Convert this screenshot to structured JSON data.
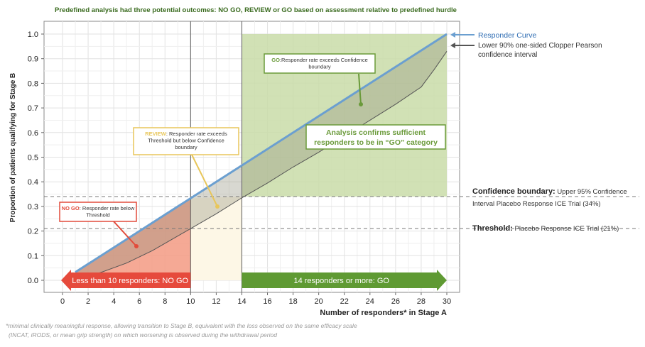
{
  "chart_data": {
    "type": "area",
    "title": "Predefined analysis had three potential outcomes: NO GO, REVIEW or GO based on assessment relative to predefined hurdle",
    "xlabel": "Number of responders* in Stage A",
    "ylabel": "Proportion of patients qualifying for Stage B",
    "xlim": [
      0,
      30
    ],
    "ylim": [
      0,
      1.0
    ],
    "x_ticks": [
      "0",
      "2",
      "4",
      "6",
      "8",
      "10",
      "12",
      "14",
      "16",
      "18",
      "20",
      "22",
      "24",
      "26",
      "28",
      "30"
    ],
    "y_ticks": [
      "0.0",
      "0.1",
      "0.2",
      "0.3",
      "0.4",
      "0.5",
      "0.6",
      "0.7",
      "0.8",
      "0.9",
      "1.0"
    ],
    "grid": true,
    "series": [
      {
        "name": "Responder Curve",
        "color": "#6b9fd0",
        "x": [
          1,
          30
        ],
        "y": [
          0.033,
          1.0
        ]
      },
      {
        "name": "Lower 90% one-sided Clopper Pearson confidence interval",
        "color": "#555555",
        "x": [
          1,
          3,
          5,
          7,
          9,
          10,
          12,
          14,
          16,
          18,
          20,
          22,
          24,
          26,
          28,
          29,
          30
        ],
        "y": [
          0.002,
          0.032,
          0.07,
          0.12,
          0.18,
          0.21,
          0.27,
          0.335,
          0.395,
          0.46,
          0.52,
          0.585,
          0.65,
          0.715,
          0.785,
          0.855,
          0.93
        ]
      }
    ],
    "reference_lines": [
      {
        "y": 0.34,
        "label_bold": "Confidence boundary:",
        "label": " Upper 95% Confidence Interval Placebo Response ICE Trial (34%)"
      },
      {
        "y": 0.21,
        "label_bold": "Threshold:",
        "label": " Placebo Response ICE Trial (21%)"
      }
    ],
    "vertical_lines": [
      10,
      14
    ],
    "zones": [
      {
        "name": "NO GO",
        "x": [
          0,
          10
        ],
        "y": [
          0,
          0.34
        ],
        "color": "#f4a08a"
      },
      {
        "name": "REVIEW",
        "x": [
          10,
          14
        ],
        "y": [
          0,
          0.34
        ],
        "color": "#fdf7e6"
      },
      {
        "name": "GO",
        "x": [
          14,
          30
        ],
        "y": [
          0.34,
          1.0
        ],
        "color": "#c9dca8"
      }
    ],
    "annotations": [
      {
        "id": "go",
        "prefix": "GO",
        "text": ":Responder rate exceeds Confidence boundary",
        "color": "#6a9a3a"
      },
      {
        "id": "review",
        "prefix": "REVIEW",
        "text": ": Responder rate exceeds Threshold but below Confidence boundary",
        "color": "#e8c65a"
      },
      {
        "id": "nogo",
        "prefix": "NO GO",
        "text": ": Responder rate below Threshold",
        "color": "#e24b3b"
      },
      {
        "id": "confirm",
        "text": "Analysis confirms sufficient responders to be in “GO” category",
        "color": "#6a9a3a"
      }
    ],
    "arrows": [
      {
        "text": "Less than 10 responders: NO GO",
        "x": [
          0,
          10
        ],
        "color": "#e64a3c"
      },
      {
        "text": "14 responders or more: GO",
        "x": [
          14,
          30
        ],
        "color": "#5f9a33"
      }
    ],
    "legend": {
      "placement": "right",
      "responder": "Responder Curve",
      "ci": "Lower 90% one-sided Clopper Pearson confidence interval"
    },
    "footnote": "*minimal clinically meaningful response, allowing transition to Stage B, equivalent with the loss observed on the same efficacy scale (INCAT, iRODS, or mean grip strength) on which worsening is observed during the withdrawal period"
  }
}
